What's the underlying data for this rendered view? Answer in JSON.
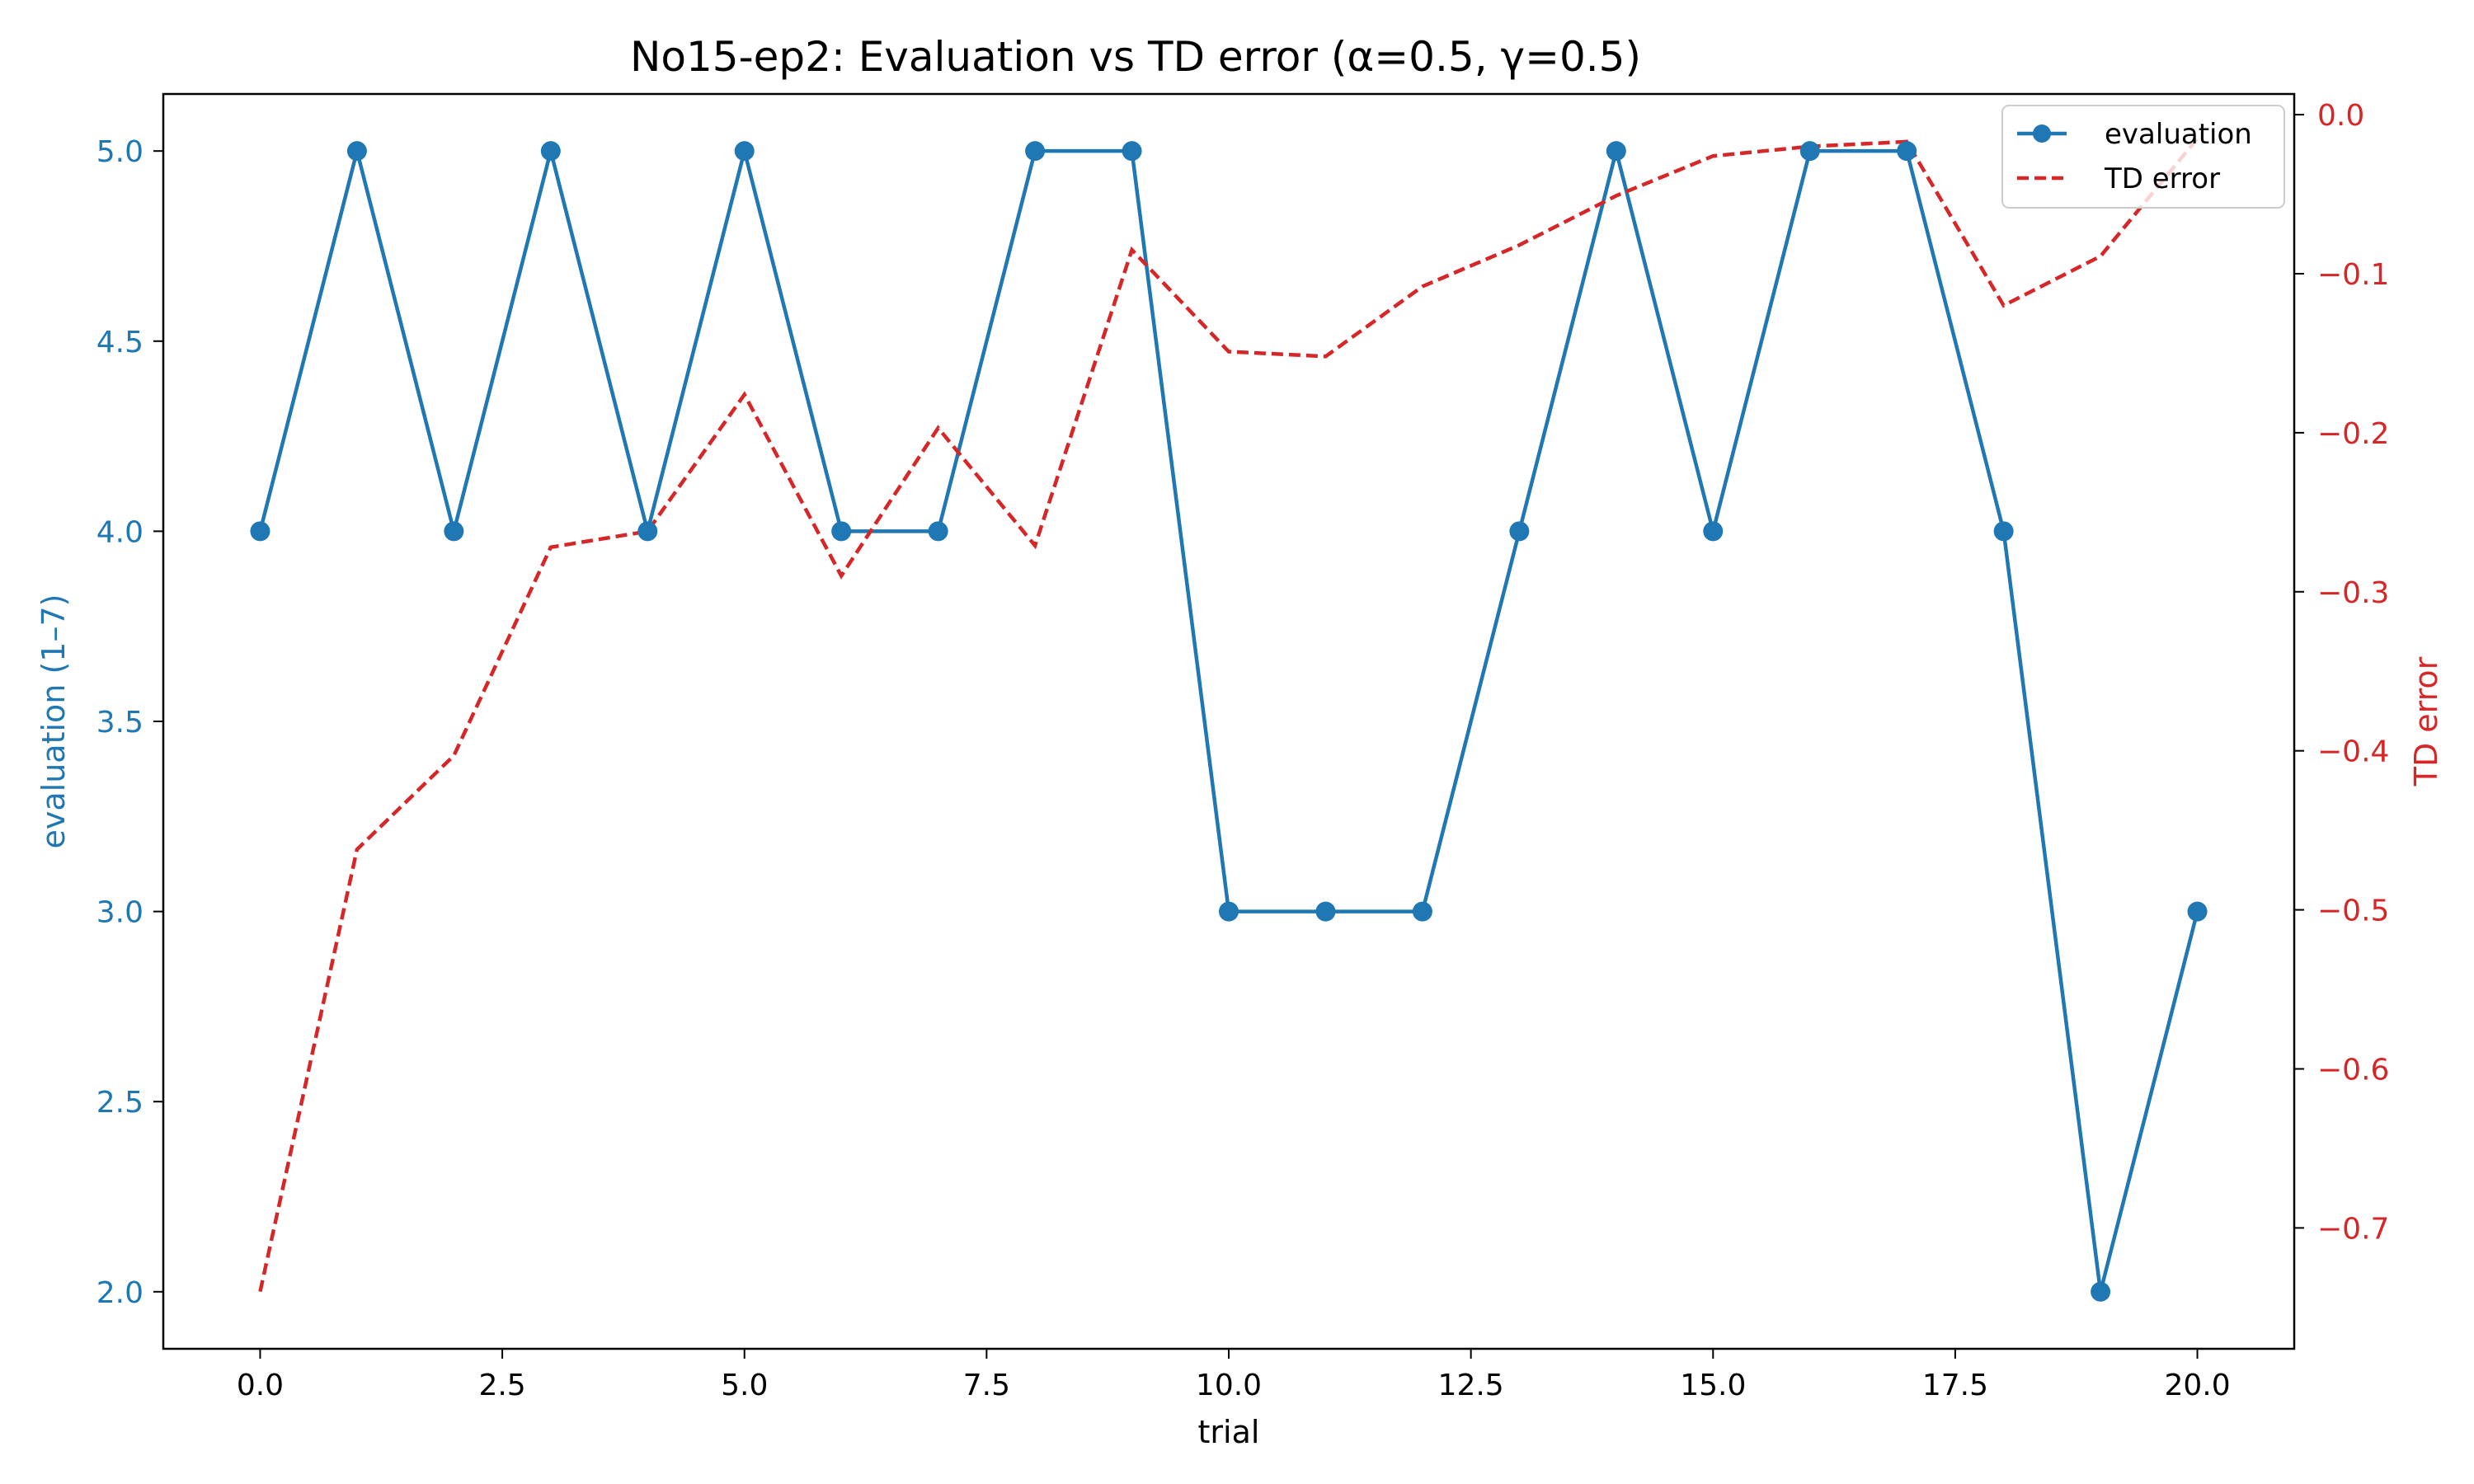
{
  "chart_data": {
    "type": "line",
    "title": "No15-ep2: Evaluation vs TD error (α=0.5, γ=0.5)",
    "xlabel": "trial",
    "ylabel_left": "evaluation (1–7)",
    "ylabel_right": "TD error",
    "xlim": [
      -1.0,
      21.0
    ],
    "ylim_left": [
      1.85,
      5.15
    ],
    "ylim_right": [
      -0.776,
      0.013
    ],
    "x_ticks": [
      0.0,
      2.5,
      5.0,
      7.5,
      10.0,
      12.5,
      15.0,
      17.5,
      20.0
    ],
    "x_tick_labels": [
      "0.0",
      "2.5",
      "5.0",
      "7.5",
      "10.0",
      "12.5",
      "15.0",
      "17.5",
      "20.0"
    ],
    "y_left_ticks": [
      2.0,
      2.5,
      3.0,
      3.5,
      4.0,
      4.5,
      5.0
    ],
    "y_left_tick_labels": [
      "2.0",
      "2.5",
      "3.0",
      "3.5",
      "4.0",
      "4.5",
      "5.0"
    ],
    "y_right_ticks": [
      0.0,
      -0.1,
      -0.2,
      -0.3,
      -0.4,
      -0.5,
      -0.6,
      -0.7
    ],
    "y_right_tick_labels": [
      "0.0",
      "−0.1",
      "−0.2",
      "−0.3",
      "−0.4",
      "−0.5",
      "−0.6",
      "−0.7"
    ],
    "grid": false,
    "legend_position": "top-right",
    "x": [
      0,
      1,
      2,
      3,
      4,
      5,
      6,
      7,
      8,
      9,
      10,
      11,
      12,
      13,
      14,
      15,
      16,
      17,
      18,
      19,
      20
    ],
    "series": [
      {
        "name": "evaluation",
        "axis": "left",
        "color": "#1f77b4",
        "style": "solid-markers",
        "values": [
          4,
          5,
          4,
          5,
          4,
          5,
          4,
          4,
          5,
          5,
          3,
          3,
          3,
          4,
          5,
          4,
          5,
          5,
          4,
          2,
          3
        ]
      },
      {
        "name": "TD error",
        "axis": "right",
        "color": "#d62728",
        "style": "dashed",
        "values": [
          -0.74,
          -0.462,
          -0.403,
          -0.272,
          -0.262,
          -0.176,
          -0.29,
          -0.197,
          -0.271,
          -0.085,
          -0.149,
          -0.152,
          -0.108,
          -0.082,
          -0.051,
          -0.026,
          -0.02,
          -0.017,
          -0.12,
          -0.089,
          -0.015
        ]
      }
    ]
  }
}
